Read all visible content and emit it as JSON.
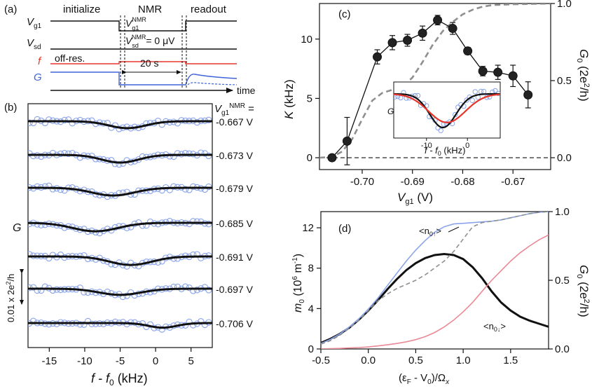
{
  "colors": {
    "black": "#111111",
    "red": "#e8352b",
    "blue": "#3f63d8",
    "lightblue": "#8aa4ea",
    "pink": "#e98a96",
    "gray": "#8f8f8f",
    "marker": "#222222"
  },
  "panel_a": {
    "label": "(a)",
    "phases": {
      "initialize": "initialize",
      "nmr": "NMR",
      "readout": "readout"
    },
    "rows": {
      "vg1": "V",
      "vg1_sub": "g1",
      "vsd": "V",
      "vsd_sub": "sd",
      "f": "f",
      "g": "G"
    },
    "annotations": {
      "vnmr_main": "V",
      "vnmr_sub": "g1",
      "vnmr_sup": "NMR",
      "vsd_main": "V",
      "vsd_sub": "sd",
      "vsd_sup": "NMR",
      "vsd_rest": "= 0 μV",
      "offres": "off-res.",
      "duration": "20 s",
      "time": "time"
    }
  },
  "chart_data": [
    {
      "id": "b",
      "label": "(b)",
      "type": "scatter",
      "title": "",
      "xlabel_main": "f - f",
      "xlabel_sub": "0",
      "xlabel_unit": " (kHz)",
      "ylabel": "G",
      "xlim": [
        -18,
        8
      ],
      "xticks": [
        -15,
        -10,
        -5,
        0,
        5
      ],
      "scalebar_main": "0.01 x 2e",
      "scalebar_sup": "2",
      "scalebar_rest": "/h",
      "header_main": "V",
      "header_sub": "g1",
      "header_sup": "NMR",
      "header_rest": " =",
      "traces": [
        {
          "vg": "-0.667 V",
          "center": -4.0,
          "width": 2.6,
          "depth": 0.9
        },
        {
          "vg": "-0.673 V",
          "center": -5.0,
          "width": 2.6,
          "depth": 1.0
        },
        {
          "vg": "-0.679 V",
          "center": -6.0,
          "width": 3.0,
          "depth": 1.0
        },
        {
          "vg": "-0.685 V",
          "center": -8.5,
          "width": 3.2,
          "depth": 1.1
        },
        {
          "vg": "-0.691 V",
          "center": -3.5,
          "width": 3.0,
          "depth": 1.1
        },
        {
          "vg": "-0.697 V",
          "center": -5.0,
          "width": 3.0,
          "depth": 0.8
        },
        {
          "vg": "-0.706 V",
          "center": 1.0,
          "width": 2.0,
          "depth": 0.6
        }
      ]
    },
    {
      "id": "c",
      "label": "(c)",
      "type": "scatter",
      "xlabel_main": "V",
      "xlabel_sub": "g1",
      "xlabel_unit": " (V)",
      "ylabel_main": "K",
      "ylabel_unit": "  (kHz)",
      "y2label_main": "G",
      "y2label_sub": "0",
      "y2label_rest": " (2e",
      "y2label_sup": "2",
      "y2label_end": "/h)",
      "xlim": [
        -0.7085,
        -0.6625
      ],
      "ylim": [
        -1.0,
        13.0
      ],
      "y2lim": [
        -0.0769,
        1.0
      ],
      "xticks": [
        "-0.70",
        "-0.69",
        "-0.68",
        "-0.67"
      ],
      "xtick_values": [
        -0.7,
        -0.69,
        -0.68,
        -0.67
      ],
      "yticks": [
        0,
        5,
        10
      ],
      "y2ticks": [
        "0.0",
        "0.5",
        "1.0"
      ],
      "y2tick_values": [
        0.0,
        0.5,
        1.0
      ],
      "K": [
        {
          "x": -0.706,
          "y": 0.0,
          "err": 0.0
        },
        {
          "x": -0.703,
          "y": 1.4,
          "err": 2.0
        },
        {
          "x": -0.697,
          "y": 8.5,
          "err": 0.6
        },
        {
          "x": -0.694,
          "y": 9.7,
          "err": 0.6
        },
        {
          "x": -0.691,
          "y": 9.9,
          "err": 0.5
        },
        {
          "x": -0.688,
          "y": 10.5,
          "err": 0.6
        },
        {
          "x": -0.685,
          "y": 11.6,
          "err": 0.4
        },
        {
          "x": -0.682,
          "y": 10.9,
          "err": 0.5
        },
        {
          "x": -0.679,
          "y": 9.0,
          "err": 0.3
        },
        {
          "x": -0.676,
          "y": 7.3,
          "err": 0.4
        },
        {
          "x": -0.673,
          "y": 7.2,
          "err": 0.6
        },
        {
          "x": -0.67,
          "y": 6.9,
          "err": 0.9
        },
        {
          "x": -0.667,
          "y": 5.3,
          "err": 1.1
        }
      ],
      "G0_curve": [
        [
          -0.7085,
          0.0
        ],
        [
          -0.706,
          0.005
        ],
        [
          -0.704,
          0.04
        ],
        [
          -0.702,
          0.12
        ],
        [
          -0.7,
          0.25
        ],
        [
          -0.698,
          0.37
        ],
        [
          -0.696,
          0.42
        ],
        [
          -0.694,
          0.44
        ],
        [
          -0.692,
          0.46
        ],
        [
          -0.69,
          0.52
        ],
        [
          -0.688,
          0.62
        ],
        [
          -0.686,
          0.73
        ],
        [
          -0.684,
          0.82
        ],
        [
          -0.682,
          0.88
        ],
        [
          -0.68,
          0.93
        ],
        [
          -0.678,
          0.96
        ],
        [
          -0.676,
          0.98
        ],
        [
          -0.674,
          0.99
        ],
        [
          -0.67,
          0.995
        ],
        [
          -0.6625,
          1.0
        ]
      ],
      "inset": {
        "xlabel_main": "f - f",
        "xlabel_sub": "0",
        "xlabel_unit": " (kHz)",
        "ylabel": "G",
        "xlim": [
          -18,
          8
        ],
        "xticks": [
          "-10",
          "0"
        ],
        "xtick_values": [
          -10,
          0
        ],
        "black_fit": {
          "center": -6.0,
          "width": 3.2,
          "depth": 1.0
        },
        "red_fit": {
          "center": -5.0,
          "width": 4.5,
          "depth": 0.85
        }
      }
    },
    {
      "id": "d",
      "label": "(d)",
      "type": "line",
      "xlabel": "(ε",
      "xlabel_sub": "F",
      "xlabel_mid": " - V",
      "xlabel_sub2": "0",
      "xlabel_rest": ")/Ω",
      "xlabel_sub3": "x",
      "ylabel_main": "m",
      "ylabel_sub": "0",
      "ylabel_rest": " (10",
      "ylabel_sup": "6",
      "ylabel_end": " m",
      "ylabel_sup2": "-1",
      "ylabel_close": ")",
      "y2label_main": "G",
      "y2label_sub": "0",
      "y2label_rest": " (2e",
      "y2label_sup": "2",
      "y2label_end": "/h)",
      "xlim": [
        -0.5,
        1.9
      ],
      "ylim": [
        0,
        13.6
      ],
      "y2lim": [
        0,
        1.0
      ],
      "xticks": [
        "-0.5",
        "0.0",
        "0.5",
        "1.0",
        "1.5"
      ],
      "xtick_values": [
        -0.5,
        0.0,
        0.5,
        1.0,
        1.5
      ],
      "yticks": [
        0,
        4,
        8,
        12
      ],
      "y2ticks": [
        "0.0",
        "0.5",
        "1.0"
      ],
      "y2tick_values": [
        0.0,
        0.5,
        1.0
      ],
      "labels": {
        "up_main": "<n",
        "up_sub": "0↑",
        "up_end": ">",
        "down_main": "<n",
        "down_sub": "0↓",
        "down_end": ">"
      },
      "series": [
        {
          "name": "m0",
          "x": [
            -0.5,
            -0.4,
            -0.3,
            -0.2,
            -0.1,
            0.0,
            0.1,
            0.2,
            0.3,
            0.4,
            0.5,
            0.6,
            0.7,
            0.8,
            0.9,
            1.0,
            1.1,
            1.2,
            1.3,
            1.4,
            1.5,
            1.6,
            1.7,
            1.8,
            1.9
          ],
          "values": [
            0.6,
            1.0,
            1.5,
            2.1,
            2.9,
            3.8,
            4.8,
            5.9,
            6.9,
            7.8,
            8.5,
            9.0,
            9.3,
            9.4,
            9.3,
            8.9,
            8.1,
            7.0,
            5.7,
            4.6,
            3.8,
            3.2,
            2.8,
            2.5,
            2.2
          ]
        },
        {
          "name": "n0_up",
          "x": [
            -0.5,
            -0.4,
            -0.3,
            -0.2,
            -0.1,
            0.0,
            0.1,
            0.2,
            0.3,
            0.4,
            0.5,
            0.6,
            0.7,
            0.8,
            0.9,
            1.0,
            1.1,
            1.2,
            1.3,
            1.4,
            1.5,
            1.6,
            1.7,
            1.8,
            1.9
          ],
          "values": [
            0.04,
            0.07,
            0.11,
            0.16,
            0.22,
            0.29,
            0.37,
            0.46,
            0.55,
            0.64,
            0.72,
            0.79,
            0.85,
            0.89,
            0.91,
            0.915,
            0.92,
            0.925,
            0.93,
            0.94,
            0.955,
            0.97,
            0.985,
            0.995,
            1.0
          ]
        },
        {
          "name": "n0_down",
          "x": [
            -0.5,
            -0.4,
            -0.3,
            -0.2,
            -0.1,
            0.0,
            0.1,
            0.2,
            0.3,
            0.4,
            0.5,
            0.6,
            0.7,
            0.8,
            0.9,
            1.0,
            1.1,
            1.2,
            1.3,
            1.4,
            1.5,
            1.6,
            1.7,
            1.8,
            1.9
          ],
          "values": [
            0.0,
            0.002,
            0.004,
            0.007,
            0.01,
            0.015,
            0.022,
            0.03,
            0.04,
            0.052,
            0.068,
            0.09,
            0.12,
            0.16,
            0.21,
            0.27,
            0.34,
            0.42,
            0.5,
            0.57,
            0.64,
            0.7,
            0.75,
            0.795,
            0.83
          ]
        },
        {
          "name": "G0",
          "x": [
            -0.5,
            -0.4,
            -0.3,
            -0.2,
            -0.1,
            0.0,
            0.1,
            0.2,
            0.3,
            0.4,
            0.5,
            0.6,
            0.7,
            0.8,
            0.9,
            1.0,
            1.1,
            1.2,
            1.3,
            1.4,
            1.5,
            1.6,
            1.7,
            1.8,
            1.9
          ],
          "values": [
            0.035,
            0.06,
            0.1,
            0.15,
            0.21,
            0.28,
            0.35,
            0.4,
            0.44,
            0.47,
            0.5,
            0.54,
            0.59,
            0.64,
            0.71,
            0.8,
            0.89,
            0.92,
            0.93,
            0.94,
            0.955,
            0.97,
            0.985,
            0.995,
            1.0
          ]
        }
      ]
    }
  ]
}
